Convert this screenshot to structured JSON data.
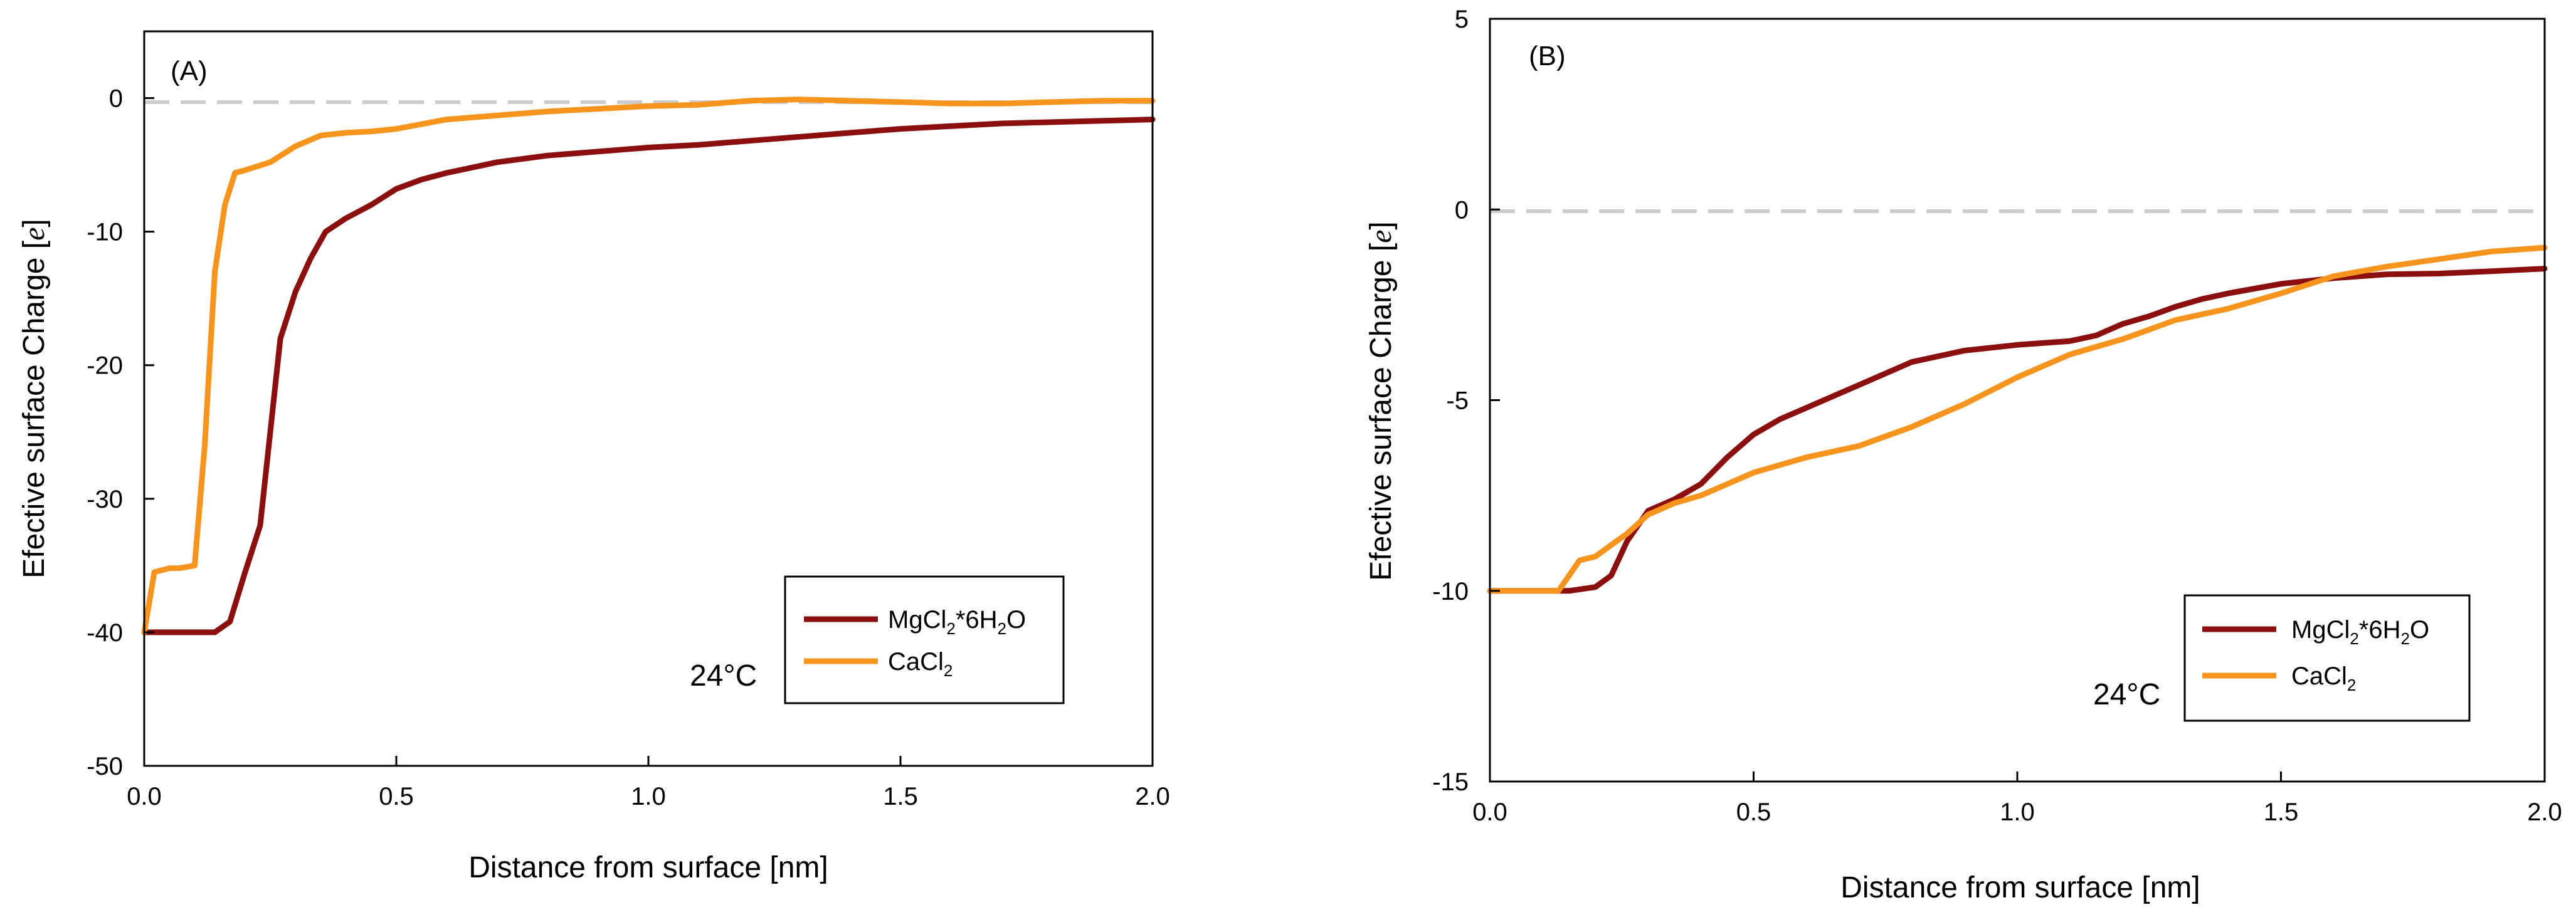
{
  "chart_data": [
    {
      "type": "line",
      "panel_label": "(A)",
      "annotation": "24°C",
      "xlabel": "Distance from surface [nm]",
      "ylabel_parts": [
        "Efective surface Charge [",
        "e",
        "]"
      ],
      "xlim": [
        0,
        2
      ],
      "ylim": [
        -50,
        5
      ],
      "xticks": [
        "0.0",
        "0.5",
        "1.0",
        "1.5",
        "2.0"
      ],
      "yticks": [
        "0",
        "-10",
        "-20",
        "-30",
        "-40",
        "-50"
      ],
      "reference_line": {
        "y": 0,
        "style": "dashed",
        "color": "#cccccc"
      },
      "legend": {
        "location": "lower-right"
      },
      "series": [
        {
          "name": "MgCl2*6H2O",
          "label_parts": [
            "MgCl",
            "2",
            "*6H",
            "2",
            "O"
          ],
          "color": "#8b0f0f",
          "x": [
            0.0,
            0.05,
            0.1,
            0.14,
            0.17,
            0.2,
            0.23,
            0.25,
            0.27,
            0.3,
            0.33,
            0.36,
            0.4,
            0.45,
            0.5,
            0.55,
            0.6,
            0.65,
            0.7,
            0.8,
            0.9,
            1.0,
            1.1,
            1.2,
            1.3,
            1.4,
            1.5,
            1.6,
            1.7,
            1.8,
            1.9,
            2.0
          ],
          "y": [
            -40,
            -40,
            -40,
            -40,
            -39.2,
            -35.5,
            -32,
            -25,
            -18,
            -14.5,
            -12,
            -10,
            -9,
            -8,
            -6.8,
            -6.1,
            -5.6,
            -5.2,
            -4.8,
            -4.3,
            -4.0,
            -3.7,
            -3.5,
            -3.2,
            -2.9,
            -2.6,
            -2.3,
            -2.1,
            -1.9,
            -1.8,
            -1.7,
            -1.6
          ]
        },
        {
          "name": "CaCl2",
          "label_parts": [
            "CaCl",
            "2",
            "",
            "",
            ""
          ],
          "color": "#f7941d",
          "x": [
            0.0,
            0.02,
            0.05,
            0.07,
            0.1,
            0.12,
            0.14,
            0.16,
            0.18,
            0.2,
            0.25,
            0.3,
            0.35,
            0.4,
            0.45,
            0.5,
            0.6,
            0.7,
            0.8,
            0.9,
            1.0,
            1.1,
            1.2,
            1.3,
            1.4,
            1.5,
            1.6,
            1.7,
            1.8,
            1.9,
            2.0
          ],
          "y": [
            -40,
            -35.5,
            -35.2,
            -35.2,
            -35,
            -26,
            -13,
            -8,
            -5.6,
            -5.4,
            -4.8,
            -3.6,
            -2.8,
            -2.6,
            -2.5,
            -2.3,
            -1.6,
            -1.3,
            -1.0,
            -0.8,
            -0.6,
            -0.5,
            -0.2,
            -0.1,
            -0.2,
            -0.3,
            -0.4,
            -0.4,
            -0.3,
            -0.2,
            -0.2
          ]
        }
      ]
    },
    {
      "type": "line",
      "panel_label": "(B)",
      "annotation": "24°C",
      "xlabel": "Distance from surface [nm]",
      "ylabel_parts": [
        "Efective surface Charge [",
        "e",
        "]"
      ],
      "xlim": [
        0,
        2
      ],
      "ylim": [
        -15,
        5
      ],
      "xticks": [
        "0.0",
        "0.5",
        "1.0",
        "1.5",
        "2.0"
      ],
      "yticks": [
        "5",
        "0",
        "-5",
        "-10",
        "-15"
      ],
      "reference_line": {
        "y": 0,
        "style": "dashed",
        "color": "#cccccc"
      },
      "legend": {
        "location": "lower-right"
      },
      "series": [
        {
          "name": "MgCl2*6H2O",
          "label_parts": [
            "MgCl",
            "2",
            "*6H",
            "2",
            "O"
          ],
          "color": "#8b0f0f",
          "x": [
            0.0,
            0.05,
            0.1,
            0.15,
            0.2,
            0.23,
            0.26,
            0.3,
            0.35,
            0.4,
            0.45,
            0.5,
            0.55,
            0.6,
            0.7,
            0.8,
            0.9,
            1.0,
            1.1,
            1.15,
            1.2,
            1.25,
            1.3,
            1.35,
            1.4,
            1.5,
            1.6,
            1.7,
            1.8,
            1.9,
            2.0
          ],
          "y": [
            -10,
            -10,
            -10,
            -10,
            -9.9,
            -9.6,
            -8.7,
            -7.9,
            -7.6,
            -7.2,
            -6.5,
            -5.9,
            -5.5,
            -5.2,
            -4.6,
            -4.0,
            -3.7,
            -3.55,
            -3.45,
            -3.3,
            -3.0,
            -2.8,
            -2.55,
            -2.35,
            -2.2,
            -1.95,
            -1.8,
            -1.7,
            -1.68,
            -1.62,
            -1.55
          ]
        },
        {
          "name": "CaCl2",
          "label_parts": [
            "CaCl",
            "2",
            "",
            "",
            ""
          ],
          "color": "#f7941d",
          "x": [
            0.0,
            0.05,
            0.1,
            0.13,
            0.15,
            0.17,
            0.2,
            0.23,
            0.26,
            0.3,
            0.35,
            0.4,
            0.5,
            0.6,
            0.7,
            0.8,
            0.9,
            1.0,
            1.1,
            1.2,
            1.3,
            1.4,
            1.5,
            1.6,
            1.7,
            1.8,
            1.9,
            2.0
          ],
          "y": [
            -10,
            -10,
            -10,
            -10,
            -9.6,
            -9.2,
            -9.1,
            -8.8,
            -8.5,
            -8.0,
            -7.7,
            -7.5,
            -6.9,
            -6.5,
            -6.2,
            -5.7,
            -5.1,
            -4.4,
            -3.8,
            -3.4,
            -2.9,
            -2.6,
            -2.2,
            -1.75,
            -1.5,
            -1.3,
            -1.1,
            -1.0
          ]
        }
      ]
    }
  ]
}
